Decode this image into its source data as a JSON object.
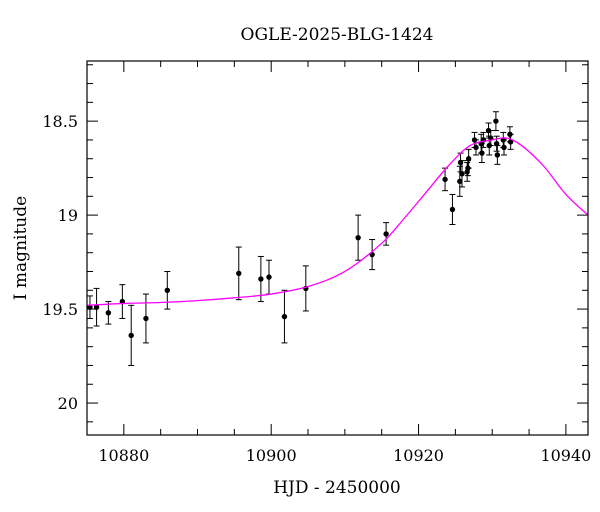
{
  "chart_data": {
    "type": "scatter",
    "title": "OGLE-2025-BLG-1424",
    "xlabel": "HJD - 2450000",
    "ylabel": "I magnitude",
    "xlim": [
      10875,
      10943
    ],
    "ylim": [
      20.17,
      18.18
    ],
    "y_inverted": true,
    "grid": false,
    "x_ticks": [
      10880,
      10900,
      10920,
      10940
    ],
    "x_tick_labels": [
      "10880",
      "10900",
      "10920",
      "10940"
    ],
    "y_ticks": [
      18.5,
      19,
      19.5,
      20
    ],
    "y_tick_labels": [
      "18.5",
      "19",
      "19.5",
      "20"
    ],
    "colors": {
      "model": "#ff00ff",
      "points": "#000000"
    },
    "series": [
      {
        "type": "scatter",
        "error_bars": true,
        "points": [
          {
            "x": 10875.4,
            "y": 19.49,
            "err": 0.06
          },
          {
            "x": 10876.3,
            "y": 19.49,
            "err": 0.1
          },
          {
            "x": 10877.9,
            "y": 19.52,
            "err": 0.06
          },
          {
            "x": 10879.8,
            "y": 19.46,
            "err": 0.09
          },
          {
            "x": 10881.0,
            "y": 19.64,
            "err": 0.16
          },
          {
            "x": 10883.0,
            "y": 19.55,
            "err": 0.13
          },
          {
            "x": 10885.9,
            "y": 19.4,
            "err": 0.1
          },
          {
            "x": 10895.6,
            "y": 19.31,
            "err": 0.14
          },
          {
            "x": 10898.6,
            "y": 19.34,
            "err": 0.12
          },
          {
            "x": 10899.7,
            "y": 19.33,
            "err": 0.09
          },
          {
            "x": 10901.8,
            "y": 19.54,
            "err": 0.14
          },
          {
            "x": 10904.7,
            "y": 19.39,
            "err": 0.12
          },
          {
            "x": 10911.8,
            "y": 19.12,
            "err": 0.12
          },
          {
            "x": 10913.7,
            "y": 19.21,
            "err": 0.08
          },
          {
            "x": 10915.6,
            "y": 19.1,
            "err": 0.06
          },
          {
            "x": 10923.6,
            "y": 18.81,
            "err": 0.06
          },
          {
            "x": 10924.6,
            "y": 18.97,
            "err": 0.08
          },
          {
            "x": 10925.6,
            "y": 18.82,
            "err": 0.08
          },
          {
            "x": 10925.7,
            "y": 18.72,
            "err": 0.05
          },
          {
            "x": 10925.9,
            "y": 18.78,
            "err": 0.07
          },
          {
            "x": 10926.6,
            "y": 18.77,
            "err": 0.05
          },
          {
            "x": 10926.7,
            "y": 18.75,
            "err": 0.04
          },
          {
            "x": 10926.8,
            "y": 18.7,
            "err": 0.05
          },
          {
            "x": 10927.6,
            "y": 18.6,
            "err": 0.04
          },
          {
            "x": 10927.8,
            "y": 18.64,
            "err": 0.04
          },
          {
            "x": 10928.5,
            "y": 18.62,
            "err": 0.05
          },
          {
            "x": 10928.6,
            "y": 18.67,
            "err": 0.05
          },
          {
            "x": 10928.8,
            "y": 18.6,
            "err": 0.04
          },
          {
            "x": 10929.5,
            "y": 18.55,
            "err": 0.04
          },
          {
            "x": 10929.6,
            "y": 18.63,
            "err": 0.05
          },
          {
            "x": 10929.8,
            "y": 18.59,
            "err": 0.04
          },
          {
            "x": 10930.5,
            "y": 18.5,
            "err": 0.05
          },
          {
            "x": 10930.6,
            "y": 18.62,
            "err": 0.04
          },
          {
            "x": 10930.7,
            "y": 18.68,
            "err": 0.05
          },
          {
            "x": 10931.5,
            "y": 18.6,
            "err": 0.04
          },
          {
            "x": 10931.6,
            "y": 18.64,
            "err": 0.04
          },
          {
            "x": 10932.4,
            "y": 18.57,
            "err": 0.04
          },
          {
            "x": 10932.5,
            "y": 18.61,
            "err": 0.04
          }
        ]
      },
      {
        "type": "line",
        "x": [
          10875,
          10880,
          10885,
          10890,
          10895,
          10900,
          10905,
          10910,
          10915,
          10918,
          10921,
          10924,
          10927,
          10930,
          10932,
          10934,
          10937,
          10940,
          10943
        ],
        "y": [
          19.48,
          19.47,
          19.465,
          19.455,
          19.44,
          19.42,
          19.38,
          19.3,
          19.15,
          19.02,
          18.88,
          18.74,
          18.63,
          18.6,
          18.59,
          18.63,
          18.74,
          18.89,
          19.0
        ]
      }
    ]
  }
}
